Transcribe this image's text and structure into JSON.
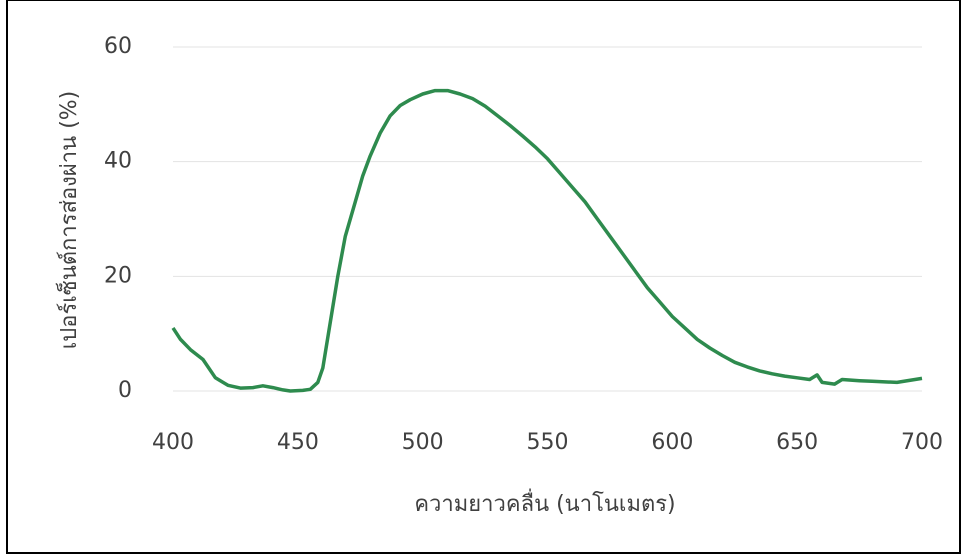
{
  "chart_data": {
    "type": "line",
    "x_label": "ความยาวคลื่น (นาโนเมตร)",
    "y_label": "เปอร์เซ็นต์การส่องผ่าน (%)",
    "xlim": [
      400,
      700
    ],
    "xticks": [
      400,
      450,
      500,
      550,
      600,
      650,
      700
    ],
    "ylim": [
      0,
      60
    ],
    "yticks": [
      0,
      20,
      40,
      60
    ],
    "grid": true,
    "series": [
      {
        "color": "#2e8b4e",
        "x": [
          400,
          403,
          407,
          412,
          417,
          422,
          427,
          432,
          436,
          440,
          444,
          447,
          452,
          455,
          458,
          460,
          463,
          466,
          469,
          473,
          476,
          479,
          483,
          487,
          491,
          495,
          500,
          505,
          510,
          515,
          520,
          525,
          530,
          535,
          540,
          545,
          550,
          555,
          560,
          565,
          570,
          575,
          580,
          585,
          590,
          595,
          600,
          605,
          610,
          615,
          620,
          625,
          630,
          635,
          640,
          645,
          650,
          655,
          658,
          660,
          665,
          668,
          675,
          680,
          690,
          700
        ],
        "values": [
          11,
          9,
          7.2,
          5.5,
          2.3,
          1,
          0.5,
          0.6,
          0.9,
          0.6,
          0.2,
          0,
          0.1,
          0.3,
          1.5,
          4,
          12,
          20,
          27,
          33,
          37.5,
          41,
          45,
          48,
          49.8,
          50.8,
          51.8,
          52.4,
          52.4,
          51.8,
          51,
          49.7,
          48,
          46.3,
          44.5,
          42.6,
          40.5,
          38,
          35.5,
          33,
          30,
          27,
          24,
          21,
          18,
          15.5,
          13,
          11,
          9,
          7.5,
          6.2,
          5,
          4.2,
          3.5,
          3,
          2.6,
          2.3,
          2,
          2.8,
          1.5,
          1.2,
          2,
          1.8,
          1.7,
          1.5,
          2.2
        ]
      }
    ]
  }
}
